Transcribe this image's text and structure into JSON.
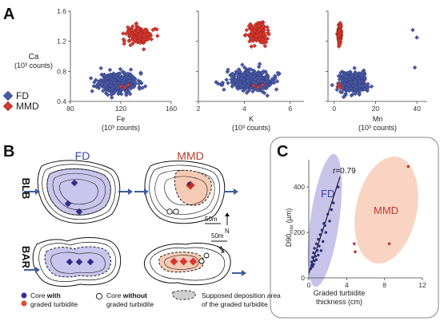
{
  "panel_labels": {
    "a": "A",
    "b": "B",
    "c": "C"
  },
  "colors": {
    "fd": "#4a5aa8",
    "mmd": "#d8382e",
    "fd_fill": "#b7b4e0",
    "mmd_fill": "#f6cbb6",
    "axis": "#444444",
    "arrow": "#3c5d9c"
  },
  "panel_a": {
    "ylabel_line1": "Ca",
    "ylabel_line2": "(10³ counts)",
    "legend": [
      {
        "label": "FD",
        "series": "fd"
      },
      {
        "label": "MMD",
        "series": "mmd"
      }
    ],
    "y_ticks": [
      "0.4",
      "0.8",
      "1.2",
      "1.6"
    ],
    "subplots": [
      {
        "key": "fe",
        "label_line1": "Fe",
        "label_line2": "(10³ counts)",
        "ticks": [
          "80",
          "120",
          "160"
        ]
      },
      {
        "key": "k",
        "label_line1": "K",
        "label_line2": "(10³ counts)",
        "ticks": [
          "2",
          "4",
          "6"
        ]
      },
      {
        "key": "mn",
        "label_line1": "Mn",
        "label_line2": "(10³ counts)",
        "ticks": [
          "0",
          "20",
          "40"
        ]
      }
    ]
  },
  "panel_b": {
    "col_fd": "FD",
    "col_mmd": "MMD",
    "row_blb": "BLB",
    "row_bar": "BAR",
    "scale_1": "50m",
    "scale_2": "50m",
    "north": "N",
    "legend": {
      "core_with_a": "Core ",
      "core_with_b": "with",
      "core_with_c": "graded turbidite",
      "core_without_a": "Core ",
      "core_without_b": "without",
      "core_without_c": "graded turbidite",
      "area_a": "Supposed deposition area",
      "area_b": "of the graded turbidite"
    }
  },
  "panel_c": {
    "ylabel": "D90",
    "ylabel_sub": "max",
    "ylabel_unit": "(µm)",
    "xlabel_line1": "Graded turbidite",
    "xlabel_line2": "thickness (cm)",
    "x_ticks": [
      "0",
      "4",
      "8",
      "12"
    ],
    "y_ticks": [
      "0",
      "200",
      "400"
    ],
    "r_label": "r=0.79",
    "fd_label": "FD",
    "mmd_label": "MMD"
  },
  "chart_data": [
    {
      "type": "scatter",
      "panel": "A (Fe vs Ca)",
      "xlabel": "Fe (10³ counts)",
      "ylabel": "Ca (10³ counts)",
      "xlim": [
        80,
        160
      ],
      "ylim": [
        0.4,
        1.6
      ],
      "series": [
        {
          "name": "FD",
          "cluster": {
            "x_center": 118,
            "y_center": 0.65,
            "x_spread": 14,
            "y_spread": 0.12,
            "n": 420,
            "seed": 11
          }
        },
        {
          "name": "MMD",
          "cluster": {
            "x_center": 135,
            "y_center": 1.28,
            "x_spread": 9,
            "y_spread": 0.11,
            "n": 180,
            "seed": 12
          },
          "points": [
            [
              120,
              0.6
            ],
            [
              123,
              0.58
            ],
            [
              126,
              0.62
            ]
          ]
        }
      ]
    },
    {
      "type": "scatter",
      "panel": "A (K vs Ca)",
      "xlabel": "K (10³ counts)",
      "ylabel": "Ca (10³ counts)",
      "xlim": [
        2,
        6.6
      ],
      "ylim": [
        0.4,
        1.6
      ],
      "series": [
        {
          "name": "FD",
          "cluster": {
            "x_center": 4.3,
            "y_center": 0.68,
            "x_spread": 0.9,
            "y_spread": 0.12,
            "n": 430,
            "seed": 21
          }
        },
        {
          "name": "MMD",
          "cluster": {
            "x_center": 4.6,
            "y_center": 1.3,
            "x_spread": 0.35,
            "y_spread": 0.11,
            "n": 180,
            "seed": 22
          },
          "points": [
            [
              4.4,
              0.61
            ],
            [
              4.6,
              0.59
            ],
            [
              4.8,
              0.62
            ]
          ]
        }
      ]
    },
    {
      "type": "scatter",
      "panel": "A (Mn vs Ca)",
      "xlabel": "Mn (10³ counts)",
      "ylabel": "Ca (10³ counts)",
      "xlim": [
        -3,
        45
      ],
      "ylim": [
        0.4,
        1.6
      ],
      "series": [
        {
          "name": "FD",
          "cluster": {
            "x_center": 9,
            "y_center": 0.65,
            "x_spread": 6,
            "y_spread": 0.12,
            "n": 380,
            "seed": 31
          },
          "points": [
            [
              38,
              1.35
            ],
            [
              40,
              1.25
            ],
            [
              39,
              0.85
            ]
          ]
        },
        {
          "name": "MMD",
          "cluster": {
            "x_center": 2.5,
            "y_center": 1.3,
            "x_spread": 0.7,
            "y_spread": 0.11,
            "n": 170,
            "seed": 32
          },
          "points": [
            [
              2,
              0.6
            ],
            [
              3,
              0.58
            ],
            [
              2.5,
              0.63
            ]
          ]
        }
      ]
    },
    {
      "type": "scatter",
      "panel": "C",
      "xlabel": "Graded turbidite thickness (cm)",
      "ylabel": "D90max (µm)",
      "xlim": [
        0,
        12
      ],
      "ylim": [
        0,
        520
      ],
      "series": [
        {
          "name": "FD",
          "points": [
            [
              0.2,
              40
            ],
            [
              0.3,
              55
            ],
            [
              0.3,
              70
            ],
            [
              0.4,
              50
            ],
            [
              0.4,
              90
            ],
            [
              0.5,
              60
            ],
            [
              0.5,
              110
            ],
            [
              0.6,
              75
            ],
            [
              0.6,
              130
            ],
            [
              0.7,
              95
            ],
            [
              0.8,
              80
            ],
            [
              0.8,
              150
            ],
            [
              0.9,
              120
            ],
            [
              1.0,
              100
            ],
            [
              1.0,
              170
            ],
            [
              1.1,
              140
            ],
            [
              1.2,
              190
            ],
            [
              1.3,
              120
            ],
            [
              1.4,
              210
            ],
            [
              1.5,
              160
            ],
            [
              1.6,
              240
            ],
            [
              1.8,
              200
            ],
            [
              2.0,
              280
            ],
            [
              2.2,
              250
            ],
            [
              2.4,
              300
            ],
            [
              2.6,
              330
            ],
            [
              1.7,
              230
            ],
            [
              3.1,
              400
            ]
          ],
          "trend": [
            [
              0,
              20
            ],
            [
              3.3,
              445
            ]
          ],
          "r": 0.79
        },
        {
          "name": "MMD",
          "points": [
            [
              10.5,
              490
            ],
            [
              8.5,
              150
            ],
            [
              4.8,
              150
            ],
            [
              4.9,
              115
            ]
          ]
        }
      ]
    }
  ]
}
